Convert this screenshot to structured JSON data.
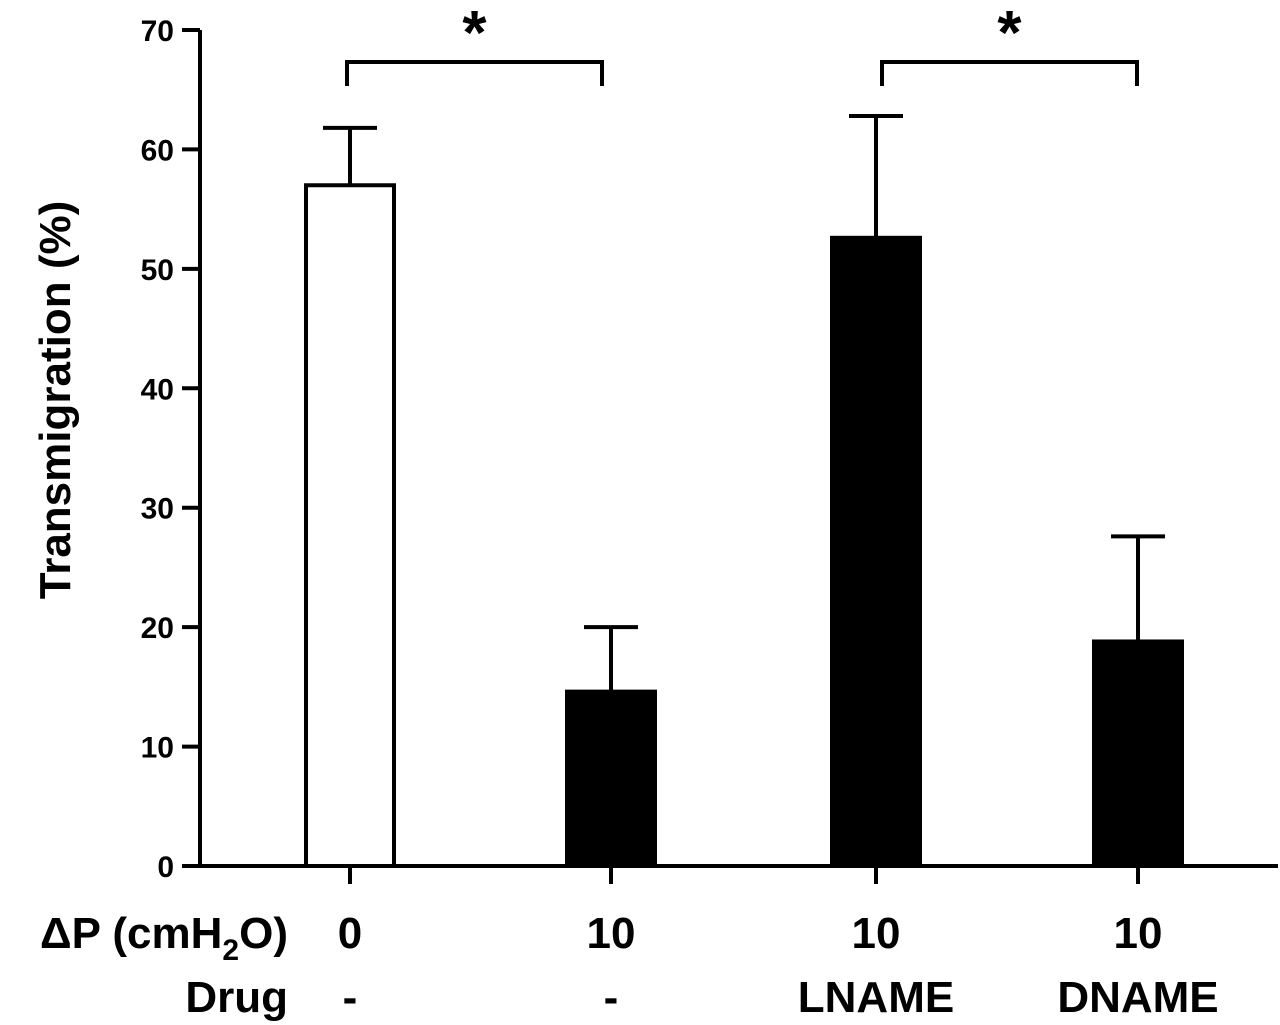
{
  "chart_data": {
    "type": "bar",
    "ylabel": "Transmigration (%)",
    "ylim": [
      0,
      70
    ],
    "yticks": [
      0,
      10,
      20,
      30,
      40,
      50,
      60,
      70
    ],
    "row_labels": {
      "delta_p_prefix": "ΔP (cmH",
      "delta_p_sub": "2",
      "delta_p_suffix": "O)",
      "drug": "Drug"
    },
    "categories": [
      {
        "delta_p": "0",
        "drug": "-",
        "value": 57.0,
        "error": 4.8,
        "fill": "white"
      },
      {
        "delta_p": "10",
        "drug": "-",
        "value": 14.6,
        "error": 5.4,
        "fill": "black"
      },
      {
        "delta_p": "10",
        "drug": "LNAME",
        "value": 52.6,
        "error": 10.2,
        "fill": "black"
      },
      {
        "delta_p": "10",
        "drug": "DNAME",
        "value": 18.8,
        "error": 8.8,
        "fill": "black"
      }
    ],
    "significance": [
      {
        "from": 0,
        "to": 1,
        "label": "*"
      },
      {
        "from": 2,
        "to": 3,
        "label": "*"
      }
    ],
    "grid": false,
    "legend": "none"
  }
}
